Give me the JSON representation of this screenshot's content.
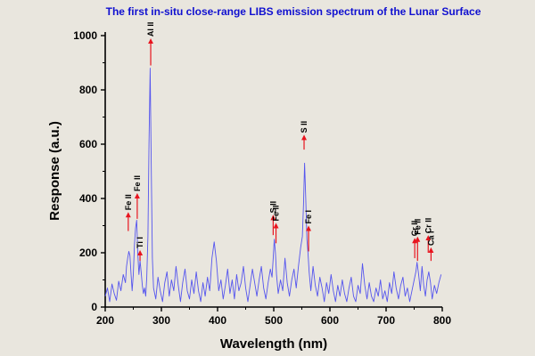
{
  "chart_data": {
    "type": "line",
    "title": "The first in-situ close-range LIBS emission spectrum of the Lunar Surface",
    "xlabel": "Wavelength (nm)",
    "ylabel": "Response (a.u.)",
    "xlim": [
      200,
      800
    ],
    "ylim": [
      0,
      1000
    ],
    "x_ticks": [
      200,
      300,
      400,
      500,
      600,
      700,
      800
    ],
    "y_ticks": [
      0,
      200,
      400,
      600,
      800,
      1000
    ],
    "grid": false,
    "colors": {
      "line": "#5555ee",
      "arrow": "#e8141e",
      "title": "#1010d0",
      "axis": "#000000"
    },
    "series": [
      {
        "points": [
          [
            200,
            40
          ],
          [
            204,
            70
          ],
          [
            208,
            20
          ],
          [
            212,
            85
          ],
          [
            216,
            50
          ],
          [
            220,
            25
          ],
          [
            224,
            95
          ],
          [
            228,
            60
          ],
          [
            232,
            120
          ],
          [
            236,
            90
          ],
          [
            238,
            150
          ],
          [
            240,
            180
          ],
          [
            242,
            205
          ],
          [
            244,
            190
          ],
          [
            246,
            120
          ],
          [
            248,
            60
          ],
          [
            250,
            120
          ],
          [
            252,
            230
          ],
          [
            254,
            290
          ],
          [
            256,
            320
          ],
          [
            258,
            200
          ],
          [
            260,
            120
          ],
          [
            262,
            170
          ],
          [
            264,
            130
          ],
          [
            266,
            80
          ],
          [
            268,
            50
          ],
          [
            270,
            70
          ],
          [
            272,
            40
          ],
          [
            274,
            110
          ],
          [
            276,
            260
          ],
          [
            278,
            600
          ],
          [
            280,
            880
          ],
          [
            282,
            500
          ],
          [
            284,
            180
          ],
          [
            286,
            70
          ],
          [
            290,
            30
          ],
          [
            294,
            110
          ],
          [
            298,
            60
          ],
          [
            302,
            20
          ],
          [
            306,
            90
          ],
          [
            310,
            130
          ],
          [
            314,
            40
          ],
          [
            318,
            100
          ],
          [
            322,
            60
          ],
          [
            326,
            150
          ],
          [
            330,
            80
          ],
          [
            334,
            20
          ],
          [
            338,
            90
          ],
          [
            342,
            140
          ],
          [
            346,
            60
          ],
          [
            350,
            30
          ],
          [
            354,
            100
          ],
          [
            358,
            50
          ],
          [
            362,
            130
          ],
          [
            366,
            60
          ],
          [
            370,
            20
          ],
          [
            374,
            90
          ],
          [
            378,
            40
          ],
          [
            382,
            110
          ],
          [
            386,
            60
          ],
          [
            390,
            180
          ],
          [
            394,
            240
          ],
          [
            398,
            170
          ],
          [
            402,
            60
          ],
          [
            406,
            100
          ],
          [
            410,
            30
          ],
          [
            414,
            80
          ],
          [
            418,
            140
          ],
          [
            422,
            50
          ],
          [
            426,
            100
          ],
          [
            430,
            30
          ],
          [
            434,
            120
          ],
          [
            438,
            60
          ],
          [
            442,
            90
          ],
          [
            446,
            150
          ],
          [
            450,
            70
          ],
          [
            454,
            20
          ],
          [
            458,
            80
          ],
          [
            462,
            140
          ],
          [
            466,
            90
          ],
          [
            470,
            40
          ],
          [
            474,
            100
          ],
          [
            478,
            150
          ],
          [
            482,
            70
          ],
          [
            486,
            30
          ],
          [
            490,
            90
          ],
          [
            494,
            140
          ],
          [
            497,
            110
          ],
          [
            499,
            180
          ],
          [
            501,
            250
          ],
          [
            503,
            200
          ],
          [
            505,
            120
          ],
          [
            508,
            50
          ],
          [
            512,
            100
          ],
          [
            516,
            60
          ],
          [
            520,
            180
          ],
          [
            524,
            90
          ],
          [
            528,
            40
          ],
          [
            532,
            100
          ],
          [
            536,
            140
          ],
          [
            540,
            70
          ],
          [
            544,
            150
          ],
          [
            548,
            220
          ],
          [
            551,
            260
          ],
          [
            553,
            380
          ],
          [
            555,
            530
          ],
          [
            557,
            400
          ],
          [
            559,
            250
          ],
          [
            561,
            200
          ],
          [
            563,
            130
          ],
          [
            566,
            60
          ],
          [
            570,
            150
          ],
          [
            574,
            80
          ],
          [
            578,
            40
          ],
          [
            582,
            110
          ],
          [
            586,
            70
          ],
          [
            590,
            20
          ],
          [
            594,
            90
          ],
          [
            598,
            50
          ],
          [
            602,
            120
          ],
          [
            606,
            60
          ],
          [
            610,
            20
          ],
          [
            614,
            80
          ],
          [
            618,
            40
          ],
          [
            622,
            100
          ],
          [
            626,
            50
          ],
          [
            630,
            20
          ],
          [
            634,
            70
          ],
          [
            638,
            110
          ],
          [
            642,
            40
          ],
          [
            646,
            20
          ],
          [
            650,
            80
          ],
          [
            654,
            50
          ],
          [
            658,
            160
          ],
          [
            662,
            80
          ],
          [
            666,
            30
          ],
          [
            670,
            90
          ],
          [
            674,
            40
          ],
          [
            678,
            20
          ],
          [
            682,
            70
          ],
          [
            686,
            40
          ],
          [
            690,
            100
          ],
          [
            694,
            30
          ],
          [
            698,
            60
          ],
          [
            702,
            20
          ],
          [
            706,
            90
          ],
          [
            710,
            50
          ],
          [
            714,
            130
          ],
          [
            718,
            70
          ],
          [
            722,
            30
          ],
          [
            726,
            80
          ],
          [
            730,
            110
          ],
          [
            734,
            40
          ],
          [
            738,
            70
          ],
          [
            742,
            20
          ],
          [
            746,
            60
          ],
          [
            750,
            100
          ],
          [
            753,
            130
          ],
          [
            755,
            165
          ],
          [
            758,
            120
          ],
          [
            761,
            60
          ],
          [
            764,
            150
          ],
          [
            767,
            80
          ],
          [
            770,
            40
          ],
          [
            773,
            100
          ],
          [
            776,
            130
          ],
          [
            779,
            90
          ],
          [
            782,
            30
          ],
          [
            786,
            80
          ],
          [
            790,
            50
          ],
          [
            794,
            90
          ],
          [
            798,
            120
          ]
        ]
      }
    ],
    "annotations": [
      {
        "label": "Fe II",
        "x": 241,
        "y0": 280,
        "y1": 340
      },
      {
        "label": "Fe II",
        "x": 257,
        "y0": 325,
        "y1": 410
      },
      {
        "label": "Ti I",
        "x": 262,
        "y0": 170,
        "y1": 200
      },
      {
        "label": "Al II",
        "x": 281,
        "y0": 890,
        "y1": 980
      },
      {
        "label": "S II",
        "x": 499,
        "y0": 265,
        "y1": 330
      },
      {
        "label": "Fe II",
        "x": 504,
        "y0": 235,
        "y1": 300
      },
      {
        "label": "S II",
        "x": 554,
        "y0": 580,
        "y1": 625
      },
      {
        "label": "Fe I",
        "x": 562,
        "y0": 205,
        "y1": 290
      },
      {
        "label": "Cr II",
        "x": 751,
        "y0": 180,
        "y1": 245
      },
      {
        "label": "Fe II",
        "x": 756,
        "y0": 170,
        "y1": 250
      },
      {
        "label": "Cr II",
        "x": 775,
        "y0": 200,
        "y1": 255
      },
      {
        "label": "Ca I",
        "x": 780,
        "y0": 170,
        "y1": 210
      }
    ]
  }
}
